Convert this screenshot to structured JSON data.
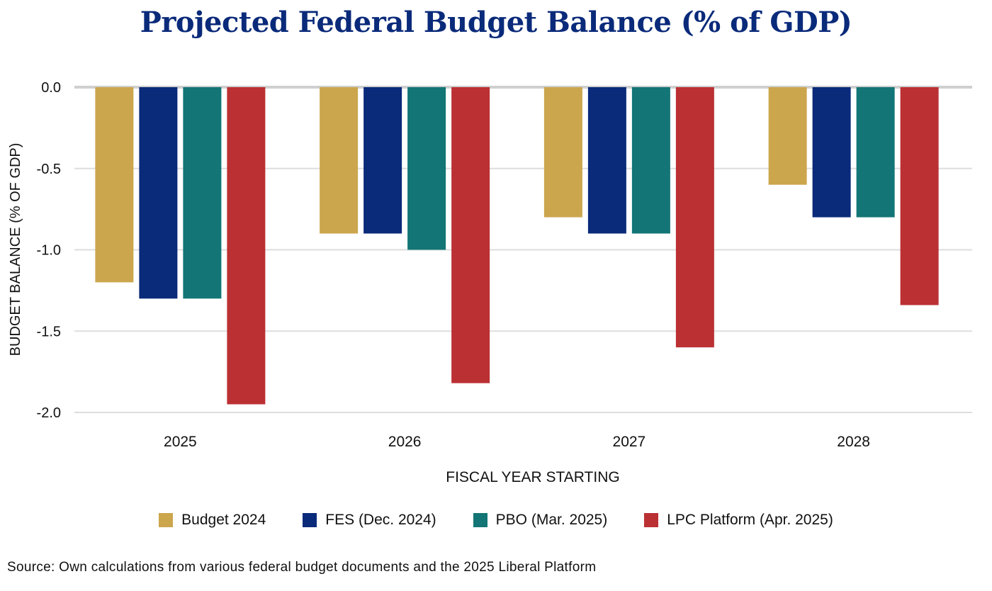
{
  "chart_data": {
    "type": "bar",
    "title": "Projected Federal Budget Balance (% of GDP)",
    "xlabel": "FISCAL YEAR STARTING",
    "ylabel": "BUDGET BALANCE (% OF GDP)",
    "categories": [
      "2025",
      "2026",
      "2027",
      "2028"
    ],
    "yticks": [
      "0.0",
      "-0.5",
      "-1.0",
      "-1.5",
      "-2.0"
    ],
    "ylim": [
      -2.0,
      0.0
    ],
    "grid": true,
    "legend_position": "bottom",
    "series": [
      {
        "name": "Budget 2024",
        "color": "#cca64d",
        "values": [
          -1.2,
          -0.9,
          -0.8,
          -0.6
        ]
      },
      {
        "name": "FES (Dec. 2024)",
        "color": "#0a2a7a",
        "values": [
          -1.3,
          -0.9,
          -0.9,
          -0.8
        ]
      },
      {
        "name": "PBO (Mar. 2025)",
        "color": "#137575",
        "values": [
          -1.3,
          -1.0,
          -0.9,
          -0.8
        ]
      },
      {
        "name": "LPC Platform (Apr. 2025)",
        "color": "#bb3033",
        "values": [
          -1.95,
          -1.82,
          -1.6,
          -1.34
        ]
      }
    ]
  },
  "source_note": "Source: Own calculations from various federal budget documents and the 2025 Liberal Platform"
}
